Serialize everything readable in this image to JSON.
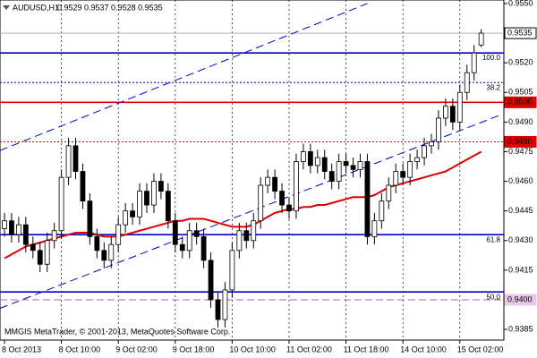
{
  "chart_data": {
    "type": "candlestick",
    "symbol": "AUDUSD,H1",
    "quote": "0.9529 0.9537 0.9528 0.9535",
    "footer": "MMGIS MetaTrader, © 2001-2013, MetaQuotes Software Corp.",
    "categories": [
      "8 Oct 2013",
      null,
      null,
      null,
      null,
      null,
      null,
      null,
      "8 Oct 10:00",
      null,
      null,
      null,
      null,
      null,
      null,
      null,
      "9 Oct 02:00",
      null,
      null,
      null,
      null,
      null,
      null,
      null,
      "9 Oct 18:00",
      null,
      null,
      null,
      null,
      null,
      null,
      null,
      "10 Oct 10:00",
      null,
      null,
      null,
      null,
      null,
      null,
      null,
      "11 Oct 02:00",
      null,
      null,
      null,
      null,
      null,
      null,
      null,
      "11 Oct 18:00",
      null,
      null,
      null,
      null,
      null,
      null,
      null,
      "14 Oct 10:00",
      null,
      null,
      null,
      null,
      null,
      null,
      null,
      "15 Oct 02:00",
      null,
      null,
      null
    ],
    "open": [
      0.9436,
      0.944,
      0.9433,
      0.9438,
      0.9428,
      0.9425,
      0.9418,
      0.943,
      0.9435,
      0.9462,
      0.9478,
      0.9465,
      0.945,
      0.9432,
      0.9425,
      0.942,
      0.9428,
      0.9438,
      0.9445,
      0.9442,
      0.9455,
      0.9448,
      0.946,
      0.9455,
      0.944,
      0.9428,
      0.9425,
      0.9435,
      0.9432,
      0.942,
      0.94,
      0.939,
      0.9405,
      0.9425,
      0.9435,
      0.943,
      0.944,
      0.9458,
      0.9462,
      0.9455,
      0.9448,
      0.9445,
      0.947,
      0.9475,
      0.9468,
      0.9472,
      0.9465,
      0.946,
      0.947,
      0.9468,
      0.9466,
      0.947,
      0.9432,
      0.944,
      0.945,
      0.9458,
      0.9465,
      0.9462,
      0.947,
      0.9472,
      0.9478,
      0.948,
      0.9492,
      0.9498,
      0.949,
      0.9505,
      0.9515,
      0.9529
    ],
    "high": [
      0.9444,
      0.9444,
      0.9442,
      0.9442,
      0.9432,
      0.9429,
      0.9434,
      0.9439,
      0.9466,
      0.9482,
      0.9482,
      0.9469,
      0.9454,
      0.9436,
      0.9429,
      0.9432,
      0.9442,
      0.9449,
      0.9449,
      0.9459,
      0.9459,
      0.9464,
      0.9464,
      0.9459,
      0.9444,
      0.9432,
      0.9439,
      0.9439,
      0.9436,
      0.9424,
      0.9404,
      0.9409,
      0.9429,
      0.9439,
      0.9439,
      0.9444,
      0.9462,
      0.9466,
      0.9466,
      0.9459,
      0.9452,
      0.9474,
      0.9479,
      0.9479,
      0.9476,
      0.9476,
      0.9469,
      0.9474,
      0.9474,
      0.9472,
      0.9474,
      0.9474,
      0.9444,
      0.9454,
      0.9462,
      0.9469,
      0.9469,
      0.9474,
      0.9476,
      0.9482,
      0.9484,
      0.9496,
      0.9502,
      0.9502,
      0.9509,
      0.9519,
      0.9529,
      0.9537
    ],
    "low": [
      0.9432,
      0.9429,
      0.9429,
      0.9424,
      0.9421,
      0.9414,
      0.9414,
      0.9426,
      0.9431,
      0.9458,
      0.9461,
      0.9446,
      0.9428,
      0.9421,
      0.9416,
      0.9416,
      0.9424,
      0.9434,
      0.9438,
      0.9438,
      0.9444,
      0.9444,
      0.9451,
      0.9436,
      0.9424,
      0.9421,
      0.9421,
      0.9428,
      0.9416,
      0.9396,
      0.9386,
      0.9386,
      0.9401,
      0.9421,
      0.9426,
      0.9426,
      0.9436,
      0.9454,
      0.9451,
      0.9444,
      0.9441,
      0.9441,
      0.9466,
      0.9464,
      0.9464,
      0.9461,
      0.9456,
      0.9456,
      0.9464,
      0.9462,
      0.9462,
      0.9428,
      0.9428,
      0.9436,
      0.9446,
      0.9454,
      0.9458,
      0.9458,
      0.9466,
      0.9468,
      0.9474,
      0.9476,
      0.9488,
      0.9486,
      0.9486,
      0.9501,
      0.9511,
      0.9528
    ],
    "close": [
      0.944,
      0.9433,
      0.9438,
      0.9428,
      0.9425,
      0.9418,
      0.943,
      0.9435,
      0.9462,
      0.9478,
      0.9465,
      0.945,
      0.9432,
      0.9425,
      0.942,
      0.9428,
      0.9438,
      0.9445,
      0.9442,
      0.9455,
      0.9448,
      0.946,
      0.9455,
      0.944,
      0.9428,
      0.9425,
      0.9435,
      0.9432,
      0.942,
      0.94,
      0.939,
      0.9405,
      0.9425,
      0.9435,
      0.943,
      0.944,
      0.9458,
      0.9462,
      0.9455,
      0.9448,
      0.9445,
      0.947,
      0.9475,
      0.9468,
      0.9472,
      0.9465,
      0.946,
      0.947,
      0.9468,
      0.9466,
      0.947,
      0.9432,
      0.944,
      0.945,
      0.9458,
      0.9465,
      0.9462,
      0.947,
      0.9472,
      0.9478,
      0.948,
      0.9492,
      0.9498,
      0.949,
      0.9505,
      0.9515,
      0.9525,
      0.9535
    ],
    "moving_average": {
      "color": "#dd0000",
      "values": [
        0.9421,
        0.9423,
        0.9425,
        0.9427,
        0.9428,
        0.9429,
        0.943,
        0.9431,
        0.9432,
        0.9433,
        0.9434,
        0.9434,
        0.9434,
        0.9433,
        0.9432,
        0.9432,
        0.9432,
        0.9433,
        0.9434,
        0.9435,
        0.9436,
        0.9437,
        0.9438,
        0.9439,
        0.944,
        0.944,
        0.9441,
        0.9441,
        0.9441,
        0.944,
        0.9439,
        0.9438,
        0.9437,
        0.9437,
        0.9437,
        0.9438,
        0.944,
        0.9442,
        0.9444,
        0.9445,
        0.9446,
        0.9446,
        0.9447,
        0.9447,
        0.9448,
        0.9448,
        0.9449,
        0.945,
        0.9451,
        0.9452,
        0.9452,
        0.9452,
        0.9453,
        0.9455,
        0.9457,
        0.9458,
        0.9459,
        0.946,
        0.9461,
        0.9462,
        0.9463,
        0.9464,
        0.9465,
        0.9467,
        0.9469,
        0.9471,
        0.9473,
        0.9475
      ]
    },
    "ylim": [
      0.93796,
      0.95518
    ],
    "yticks": [
      {
        "value": 0.955,
        "label": "0.9550"
      },
      {
        "value": 0.952,
        "label": "0.9520"
      },
      {
        "value": 0.9505,
        "label": "0.9505"
      },
      {
        "value": 0.949,
        "label": "0.9490"
      },
      {
        "value": 0.9475,
        "label": "0.9475"
      },
      {
        "value": 0.946,
        "label": "0.9460"
      },
      {
        "value": 0.9445,
        "label": "0.9445"
      },
      {
        "value": 0.943,
        "label": "0.9430"
      },
      {
        "value": 0.9415,
        "label": "0.9415"
      },
      {
        "value": 0.9385,
        "label": "0.9385"
      }
    ],
    "levels": [
      {
        "value": 0.9535,
        "color": "#b0b0b0",
        "style": "solid"
      },
      {
        "value": 0.9525,
        "color": "#0000cc",
        "style": "solid",
        "label": "100.0"
      },
      {
        "value": 0.951,
        "color": "#0000cc",
        "style": "dotted",
        "label": "38.2"
      },
      {
        "value": 0.95,
        "color": "#dd0000",
        "style": "solid"
      },
      {
        "value": 0.948,
        "color": "#dd0000",
        "style": "dotted"
      },
      {
        "value": 0.9433,
        "color": "#0000cc",
        "style": "solid",
        "label": "61.8"
      },
      {
        "value": 0.9404,
        "color": "#0000cc",
        "style": "solid",
        "label": "50.0"
      },
      {
        "value": 0.94,
        "color": "#b060b0",
        "style": "dashed"
      }
    ],
    "price_boxes": [
      {
        "value": 0.9535,
        "label": "0.9535",
        "color": "#ffffff",
        "text_color": "#000000"
      },
      {
        "value": 0.95,
        "label": "0.9500",
        "color": "#dd0000",
        "text_color": "#ffffff"
      },
      {
        "value": 0.948,
        "label": "0.9480",
        "color": "#dd0000",
        "text_color": "#ffffff"
      },
      {
        "value": 0.94,
        "label": "0.9400",
        "color": "#e8c8e8",
        "text_color": "#000000"
      }
    ],
    "trendlines": [
      {
        "x": [
          0,
          51
        ],
        "y": [
          0.94756,
          0.955
        ],
        "color": "#0000cc"
      },
      {
        "x": [
          0,
          70
        ],
        "y": [
          0.93957,
          0.9494
        ],
        "color": "#0000cc"
      }
    ],
    "grid": true
  }
}
